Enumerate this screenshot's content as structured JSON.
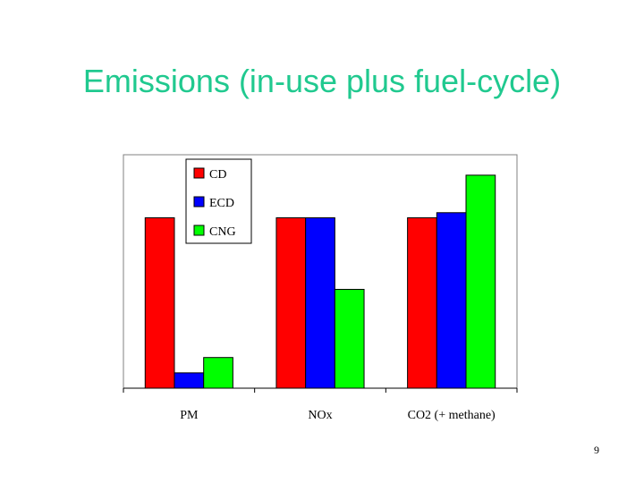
{
  "slide": {
    "title": "Emissions (in-use plus fuel-cycle)",
    "page_number": "9"
  },
  "colors": {
    "title": "#20c98f",
    "CD": "#ff0000",
    "ECD": "#0000ff",
    "CNG": "#00ff00"
  },
  "chart_data": {
    "type": "bar",
    "categories": [
      "PM",
      "NOx",
      "CO2 (+ methane)"
    ],
    "series": [
      {
        "name": "CD",
        "values": [
          1.0,
          1.0,
          1.0
        ],
        "color": "#ff0000"
      },
      {
        "name": "ECD",
        "values": [
          0.09,
          1.0,
          1.03
        ],
        "color": "#0000ff"
      },
      {
        "name": "CNG",
        "values": [
          0.18,
          0.58,
          1.25
        ],
        "color": "#00ff00"
      }
    ],
    "ylim": [
      0,
      1.37
    ],
    "y_axis_shown": false,
    "grid": false,
    "legend": "top-center",
    "title": "",
    "xlabel": "",
    "ylabel": ""
  }
}
